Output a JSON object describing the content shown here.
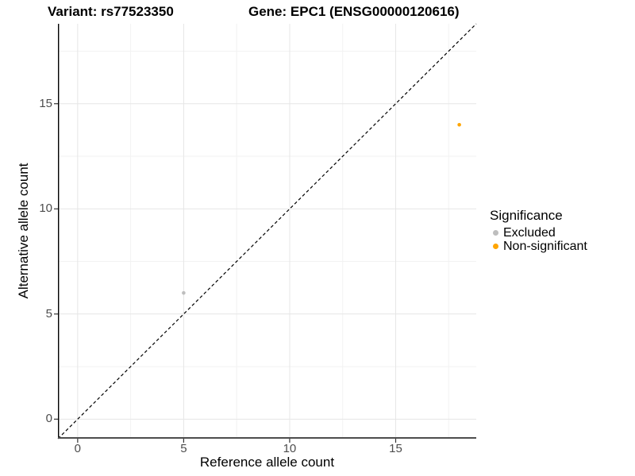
{
  "chart_data": {
    "type": "scatter",
    "title_left": "Variant: rs77523350",
    "title_right": "Gene: EPC1 (ENSG00000120616)",
    "xlabel": "Reference allele count",
    "ylabel": "Alternative allele count",
    "xlim": [
      -0.93,
      18.8
    ],
    "ylim": [
      -0.93,
      18.8
    ],
    "x_ticks": [
      0,
      5,
      10,
      15
    ],
    "y_ticks": [
      0,
      5,
      10,
      15
    ],
    "x_minor_ticks": [
      2.5,
      7.5,
      12.5,
      17.5
    ],
    "y_minor_ticks": [
      2.5,
      7.5,
      12.5,
      17.5
    ],
    "grid": "major and minor gridlines on white background",
    "reference_line": {
      "type": "identity",
      "equation": "y = x",
      "style": "dashed",
      "color": "#000000"
    },
    "series": [
      {
        "name": "Excluded",
        "color": "#BEBEBE",
        "points": [
          {
            "x": 5,
            "y": 6
          }
        ]
      },
      {
        "name": "Non-significant",
        "color": "#FFA500",
        "points": [
          {
            "x": 18,
            "y": 14
          }
        ]
      }
    ],
    "legend": {
      "title": "Significance",
      "position": "right",
      "items": [
        {
          "label": "Excluded",
          "color": "#BEBEBE"
        },
        {
          "label": "Non-significant",
          "color": "#FFA500"
        }
      ]
    }
  },
  "colors": {
    "background": "#FFFFFF",
    "grid_major": "#E6E6E6",
    "grid_minor": "#F2F2F2",
    "axis_line_left": "#000000",
    "axis_line_bottom": "#4D4D4D",
    "tick_mark": "#333333",
    "tick_label": "#4D4D4D",
    "text": "#000000",
    "point_excluded": "#BEBEBE",
    "point_non_significant": "#FFA500"
  }
}
